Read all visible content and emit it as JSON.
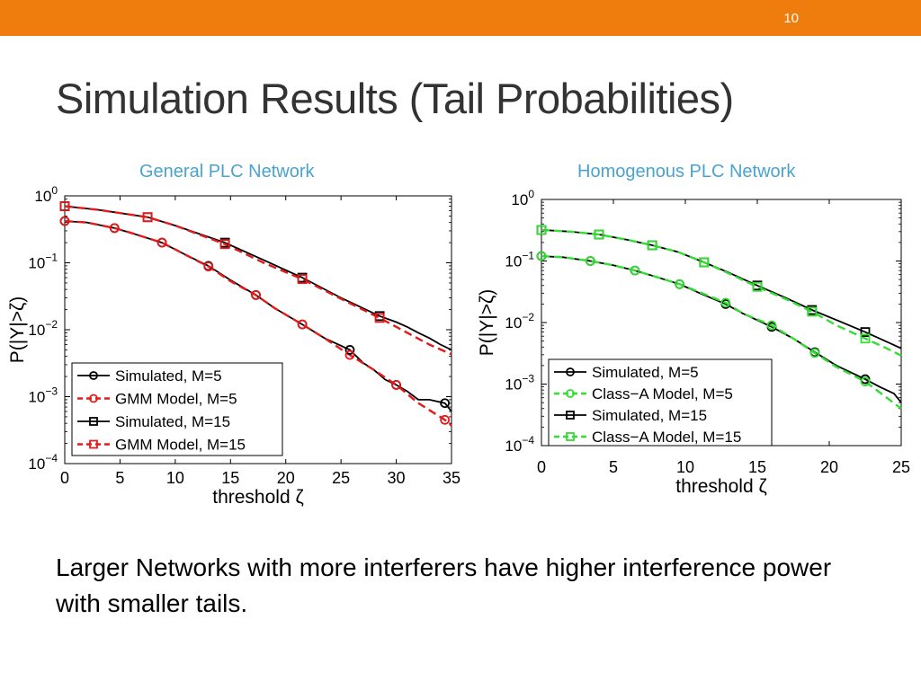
{
  "slide": {
    "number": "10",
    "title": "Simulation Results (Tail Probabilities)",
    "body": "Larger Networks with more interferers have higher interference power with smaller tails.",
    "accent_color": "#ef7d0e"
  },
  "chart_data": [
    {
      "type": "line",
      "title": "General PLC Network",
      "xlabel": "threshold ζ",
      "ylabel": "P(|Y|>ζ)",
      "xlim": [
        0,
        35
      ],
      "ylim": [
        0.0001,
        1
      ],
      "yscale": "log",
      "xticks": [
        "0",
        "5",
        "10",
        "15",
        "20",
        "25",
        "30",
        "35"
      ],
      "yticks": [
        {
          "base": "10",
          "exp": "0"
        },
        {
          "base": "10",
          "exp": "−1"
        },
        {
          "base": "10",
          "exp": "−2"
        },
        {
          "base": "10",
          "exp": "−3"
        },
        {
          "base": "10",
          "exp": "−4"
        }
      ],
      "grid": false,
      "legend_position": "bottom-left",
      "series": [
        {
          "name": "Simulated, M=5",
          "color": "#000000",
          "dash": "solid",
          "marker": "circle",
          "x": [
            0,
            2,
            4.5,
            6,
            8.8,
            11,
            13,
            15,
            17.3,
            19,
            21.5,
            23.5,
            25.8,
            27,
            28,
            29,
            30,
            31,
            32,
            33,
            34.4,
            35
          ],
          "y": [
            0.42,
            0.4,
            0.33,
            0.28,
            0.2,
            0.13,
            0.09,
            0.055,
            0.033,
            0.021,
            0.012,
            0.0075,
            0.005,
            0.0032,
            0.0025,
            0.0018,
            0.0015,
            0.0012,
            0.0009,
            0.0009,
            0.0008,
            0.0006
          ],
          "marker_x": [
            0,
            4.5,
            8.8,
            13,
            17.3,
            21.5,
            25.8,
            30,
            34.4
          ]
        },
        {
          "name": "GMM Model, M=5",
          "color": "#e41a1c",
          "dash": "dashed",
          "marker": "circle",
          "x": [
            0,
            2,
            4.5,
            6,
            8.8,
            11,
            13,
            15,
            17.3,
            19,
            21.5,
            23.5,
            25.8,
            28,
            30,
            32,
            34.4,
            35
          ],
          "y": [
            0.42,
            0.4,
            0.33,
            0.28,
            0.2,
            0.13,
            0.088,
            0.053,
            0.033,
            0.021,
            0.012,
            0.0075,
            0.0042,
            0.0025,
            0.0015,
            0.0008,
            0.00045,
            0.00037
          ],
          "marker_x": [
            0,
            4.5,
            8.8,
            13,
            17.3,
            21.5,
            25.8,
            30,
            34.4
          ]
        },
        {
          "name": "Simulated, M=15",
          "color": "#000000",
          "dash": "solid",
          "marker": "square",
          "x": [
            0,
            3,
            7.5,
            10,
            14.5,
            18,
            21.5,
            25,
            28.5,
            30,
            31,
            32,
            33,
            34,
            35
          ],
          "y": [
            0.7,
            0.62,
            0.48,
            0.36,
            0.2,
            0.11,
            0.06,
            0.03,
            0.016,
            0.013,
            0.011,
            0.009,
            0.0075,
            0.006,
            0.005
          ],
          "marker_x": [
            0,
            7.5,
            14.5,
            21.5,
            28.5
          ]
        },
        {
          "name": "GMM Model, M=15",
          "color": "#e41a1c",
          "dash": "dashed",
          "marker": "square",
          "x": [
            0,
            3,
            7.5,
            10,
            14.5,
            18,
            21.5,
            25,
            28.5,
            31,
            33,
            35
          ],
          "y": [
            0.7,
            0.62,
            0.48,
            0.36,
            0.19,
            0.1,
            0.057,
            0.029,
            0.015,
            0.009,
            0.006,
            0.0043
          ],
          "marker_x": [
            0,
            7.5,
            14.5,
            21.5,
            28.5
          ]
        }
      ]
    },
    {
      "type": "line",
      "title": "Homogenous PLC Network",
      "xlabel": "threshold ζ",
      "ylabel": "P(|Y|>ζ)",
      "xlim": [
        0,
        25
      ],
      "ylim": [
        0.0001,
        1
      ],
      "yscale": "log",
      "xticks": [
        "0",
        "5",
        "10",
        "15",
        "20",
        "25"
      ],
      "yticks": [
        {
          "base": "10",
          "exp": "0"
        },
        {
          "base": "10",
          "exp": "−1"
        },
        {
          "base": "10",
          "exp": "−2"
        },
        {
          "base": "10",
          "exp": "−3"
        },
        {
          "base": "10",
          "exp": "−4"
        }
      ],
      "grid": false,
      "legend_position": "bottom-left",
      "series": [
        {
          "name": "Simulated, M=5",
          "color": "#000000",
          "dash": "solid",
          "marker": "circle",
          "x": [
            0,
            1.5,
            3.4,
            5,
            6.5,
            8,
            9.6,
            11,
            12.8,
            14,
            16,
            17.5,
            19,
            20.5,
            22.5,
            23.5,
            24.5,
            25
          ],
          "y": [
            0.12,
            0.115,
            0.1,
            0.085,
            0.07,
            0.055,
            0.042,
            0.03,
            0.02,
            0.014,
            0.0085,
            0.0055,
            0.0033,
            0.002,
            0.0012,
            0.0009,
            0.0007,
            0.0005
          ],
          "marker_x": [
            0,
            3.4,
            6.5,
            9.6,
            12.8,
            16,
            19,
            22.5
          ]
        },
        {
          "name": "Class−A Model, M=5",
          "color": "#33dd33",
          "dash": "dashed",
          "marker": "circle",
          "x": [
            0,
            1.5,
            3.4,
            5,
            6.5,
            8,
            9.6,
            11,
            12.8,
            14,
            16,
            17.5,
            19,
            20.5,
            22.5,
            24,
            25
          ],
          "y": [
            0.12,
            0.115,
            0.1,
            0.085,
            0.07,
            0.055,
            0.042,
            0.031,
            0.021,
            0.014,
            0.009,
            0.0055,
            0.0032,
            0.0019,
            0.0011,
            0.0006,
            0.0004
          ],
          "marker_x": [
            0,
            3.4,
            6.5,
            9.6,
            12.8,
            16,
            19,
            22.5
          ]
        },
        {
          "name": "Simulated, M=15",
          "color": "#000000",
          "dash": "solid",
          "marker": "square",
          "x": [
            0,
            2,
            4,
            6,
            7.7,
            9.5,
            11.3,
            13,
            15,
            17,
            18.8,
            20.5,
            22.5,
            23.5,
            24.5,
            25
          ],
          "y": [
            0.32,
            0.3,
            0.27,
            0.22,
            0.18,
            0.14,
            0.095,
            0.065,
            0.04,
            0.025,
            0.016,
            0.011,
            0.007,
            0.0055,
            0.0043,
            0.0038
          ],
          "marker_x": [
            0,
            4,
            7.7,
            11.3,
            15,
            18.8,
            22.5
          ]
        },
        {
          "name": "Class−A Model, M=15",
          "color": "#33dd33",
          "dash": "dashed",
          "marker": "square",
          "x": [
            0,
            2,
            4,
            6,
            7.7,
            9.5,
            11.3,
            13,
            15,
            17,
            18.8,
            20.5,
            22.5,
            24,
            25
          ],
          "y": [
            0.32,
            0.3,
            0.27,
            0.22,
            0.18,
            0.14,
            0.095,
            0.063,
            0.038,
            0.024,
            0.015,
            0.009,
            0.0055,
            0.0038,
            0.0029
          ],
          "marker_x": [
            0,
            4,
            7.7,
            11.3,
            15,
            18.8,
            22.5
          ]
        }
      ]
    }
  ]
}
